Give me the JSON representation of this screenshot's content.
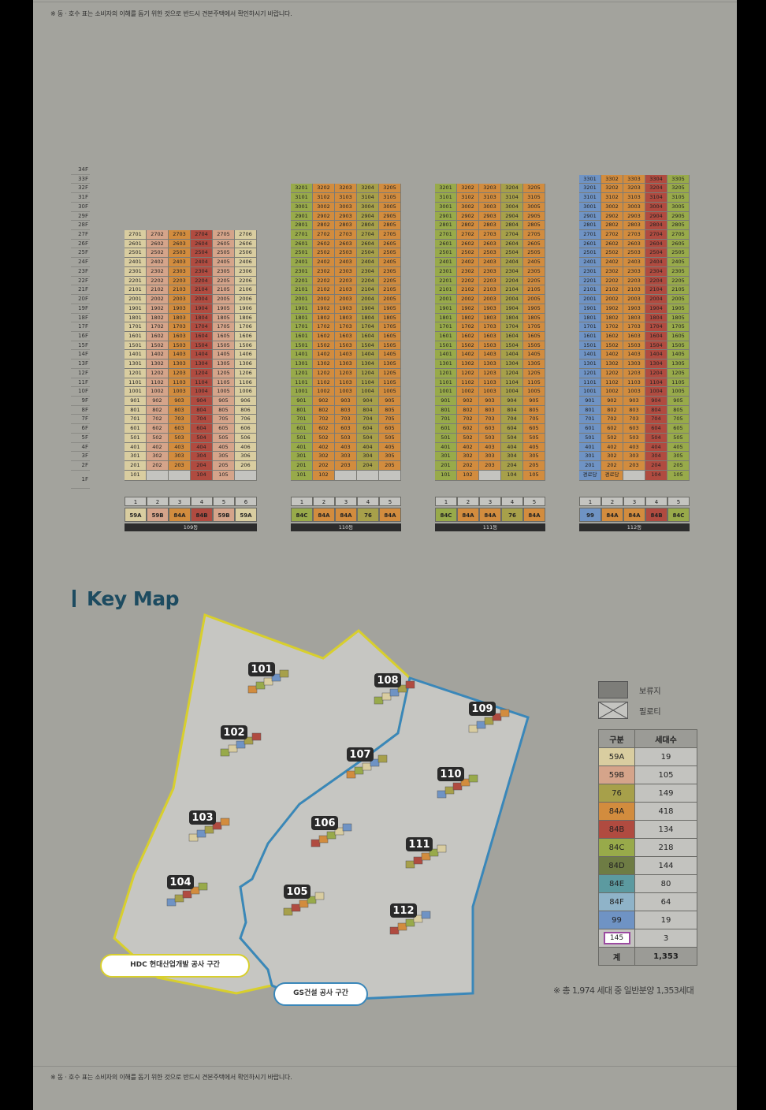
{
  "notice": "※ 동 · 호수 표는 소비자의 이해를 돕기 위한 것으로 반드시 견본주택에서 확인하시기 바랍니다.",
  "floors": [
    "34F",
    "33F",
    "32F",
    "31F",
    "30F",
    "29F",
    "28F",
    "27F",
    "26F",
    "25F",
    "24F",
    "23F",
    "22F",
    "21F",
    "20F",
    "19F",
    "18F",
    "17F",
    "16F",
    "15F",
    "14F",
    "13F",
    "12F",
    "11F",
    "10F",
    "9F",
    "8F",
    "7F",
    "6F",
    "5F",
    "4F",
    "3F",
    "2F",
    "1F"
  ],
  "buildings": [
    {
      "name": "109동",
      "lines": [
        "1",
        "2",
        "3",
        "4",
        "5",
        "6"
      ],
      "types": [
        "59A",
        "59B",
        "84A",
        "84B",
        "59B",
        "59A"
      ],
      "top_floor": 27,
      "floor2_labels": [
        "201",
        "202",
        "203",
        "204",
        "205",
        "206"
      ],
      "floor1_labels": [
        "101",
        "",
        "",
        "104",
        "105",
        ""
      ]
    },
    {
      "name": "110동",
      "lines": [
        "1",
        "2",
        "3",
        "4",
        "5"
      ],
      "types": [
        "84C",
        "84A",
        "84A",
        "76",
        "84A"
      ],
      "top_floor": 32,
      "floor2_labels": [
        "201",
        "202",
        "203",
        "204",
        "205"
      ],
      "floor1_labels": [
        "101",
        "102",
        "",
        "",
        ""
      ]
    },
    {
      "name": "111동",
      "lines": [
        "1",
        "2",
        "3",
        "4",
        "5"
      ],
      "types": [
        "84C",
        "84A",
        "84A",
        "76",
        "84A"
      ],
      "top_floor": 32,
      "floor2_labels": [
        "201",
        "202",
        "203",
        "204",
        "205"
      ],
      "floor1_labels": [
        "101",
        "102",
        "",
        "104",
        "105"
      ]
    },
    {
      "name": "112동",
      "lines": [
        "1",
        "2",
        "3",
        "4",
        "5"
      ],
      "types": [
        "99",
        "84A",
        "84A",
        "84B",
        "84C"
      ],
      "top_floor": 33,
      "floor2_labels": [
        "201",
        "202",
        "203",
        "204",
        "205"
      ],
      "floor1_labels": [
        "경로당",
        "경로당",
        "",
        "104",
        "105"
      ]
    }
  ],
  "keymap": {
    "title": "Key Map",
    "buildings": [
      "101",
      "102",
      "103",
      "104",
      "105",
      "106",
      "107",
      "108",
      "109",
      "110",
      "111",
      "112"
    ],
    "hdc_label": "HDC 현대산업개발 공사 구간",
    "gs_label": "GS건설 공사 구간",
    "legend_reserve": "보류지",
    "legend_piloti": "필로티"
  },
  "unit_table": {
    "headers": [
      "구분",
      "세대수"
    ],
    "rows": [
      {
        "type": "59A",
        "count": "19",
        "color": "#d9cda0"
      },
      {
        "type": "59B",
        "count": "105",
        "color": "#d5a48a"
      },
      {
        "type": "76",
        "count": "149",
        "color": "#a7a04a"
      },
      {
        "type": "84A",
        "count": "418",
        "color": "#d28c3e"
      },
      {
        "type": "84B",
        "count": "134",
        "color": "#b04b40"
      },
      {
        "type": "84C",
        "count": "218",
        "color": "#98aa4a"
      },
      {
        "type": "84D",
        "count": "144",
        "color": "#6e7c44"
      },
      {
        "type": "84E",
        "count": "80",
        "color": "#5c9aa0"
      },
      {
        "type": "84F",
        "count": "64",
        "color": "#8fb3c8"
      },
      {
        "type": "99",
        "count": "19",
        "color": "#6f93c4"
      },
      {
        "type": "145",
        "count": "3",
        "color": "#c3c3bf"
      }
    ],
    "total_label": "계",
    "total": "1,353"
  },
  "footnote": "※ 총 1,974 세대 중 일반분양 1,353세대",
  "colors": {
    "59A": "#d9cda0",
    "59B": "#d5a48a",
    "76": "#a7a04a",
    "84A": "#d28c3e",
    "84B": "#b04b40",
    "84C": "#98aa4a",
    "84D": "#6e7c44",
    "84E": "#5c9aa0",
    "84F": "#8fb3c8",
    "99": "#6f93c4",
    "reserve": "#7d7d79",
    "plain": "#c4c4c0"
  }
}
